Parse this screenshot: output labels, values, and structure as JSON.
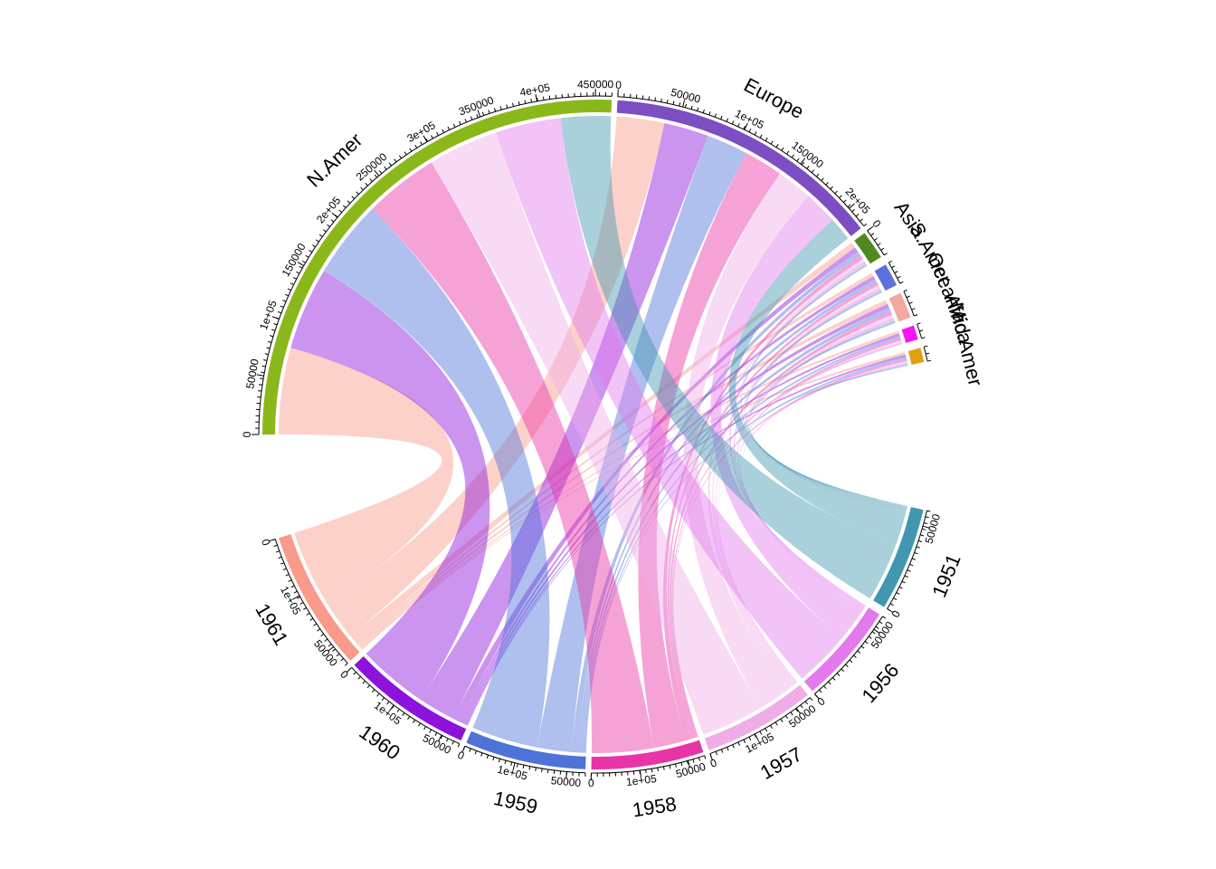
{
  "chart_data": {
    "type": "chord",
    "regions": [
      {
        "name": "N.Amer",
        "color": "#8AB81A"
      },
      {
        "name": "Europe",
        "color": "#7C4EC2"
      },
      {
        "name": "Asia",
        "color": "#508A1F"
      },
      {
        "name": "S.Amer",
        "color": "#5F6FE0"
      },
      {
        "name": "Oceania",
        "color": "#F0A8A0"
      },
      {
        "name": "Africa",
        "color": "#F716F7"
      },
      {
        "name": "Mid.Amer",
        "color": "#E0A010"
      }
    ],
    "years": [
      {
        "name": "1951",
        "color": "#4097AF"
      },
      {
        "name": "1956",
        "color": "#E279ED"
      },
      {
        "name": "1957",
        "color": "#EFADE8"
      },
      {
        "name": "1958",
        "color": "#E834A6"
      },
      {
        "name": "1959",
        "color": "#4D73D9"
      },
      {
        "name": "1960",
        "color": "#8C12DC"
      },
      {
        "name": "1961",
        "color": "#F99A8A"
      }
    ],
    "matrix": [
      [
        45939,
        60423,
        64721,
        68484,
        71799,
        76036,
        79831
      ],
      [
        21574,
        29990,
        32510,
        35218,
        37598,
        40341,
        43173
      ],
      [
        2876,
        4708,
        5230,
        6662,
        6856,
        8220,
        9053
      ],
      [
        1815,
        2568,
        2695,
        2845,
        3000,
        3145,
        3338
      ],
      [
        1646,
        2366,
        2526,
        2691,
        2868,
        3054,
        3224
      ],
      [
        89,
        1411,
        1546,
        1663,
        1769,
        1905,
        2005
      ],
      [
        555,
        733,
        773,
        836,
        911,
        1008,
        1076
      ]
    ],
    "ticks": {
      "N.Amer": [
        "0",
        "50000",
        "1e+05",
        "150000",
        "2e+05",
        "250000",
        "3e+05",
        "350000",
        "4e+05",
        "450000"
      ],
      "Europe": [
        "0",
        "50000",
        "1e+05",
        "150000",
        "2e+05"
      ],
      "Asia": [
        "0"
      ],
      "1951": [
        "0",
        "50000"
      ],
      "1956": [
        "0",
        "50000"
      ],
      "1957": [
        "0",
        "1e+05",
        "50000"
      ],
      "1958": [
        "0",
        "1e+05",
        "50000"
      ],
      "1959": [
        "0",
        "1e+05",
        "50000"
      ],
      "1960": [
        "0",
        "1e+05",
        "50000"
      ],
      "1961": [
        "0",
        "1e+05",
        "50000"
      ]
    }
  }
}
